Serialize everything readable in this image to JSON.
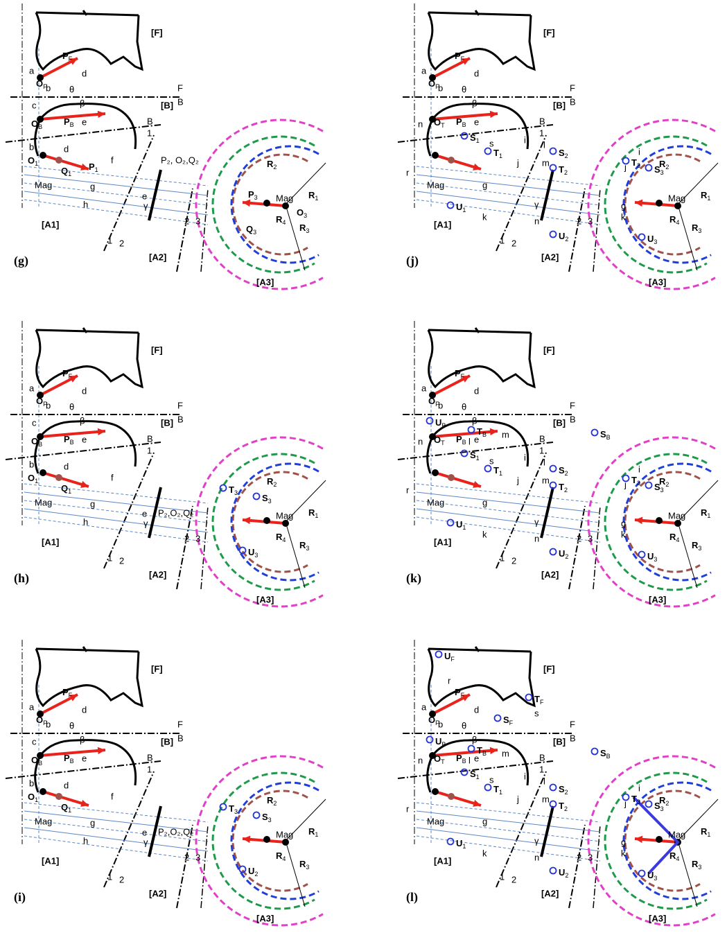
{
  "shared_labels": [
    "[F]",
    "a",
    {
      "text": "O",
      "sub": "F"
    },
    {
      "text": "P",
      "sub": "F"
    },
    "d",
    "b",
    "θ",
    "F",
    "B",
    "[B]",
    "β",
    {
      "text": "P",
      "sub": "B"
    },
    "e",
    "B",
    "1",
    "[A1]",
    "1",
    "2",
    "[A2]",
    "2",
    "3",
    "[A3]",
    {
      "text": "R",
      "sub": "1"
    },
    {
      "text": "R",
      "sub": "3"
    },
    "Mag",
    "Mag",
    {
      "text": "R",
      "sub": "2"
    }
  ],
  "panels": [
    {
      "labels": [
        "c",
        {
          "text": "O",
          "sub": "B"
        },
        "b",
        {
          "text": "O",
          "sub": "1"
        },
        {
          "text": "Q",
          "sub": "1"
        },
        {
          "text": "P",
          "sub": "1"
        },
        "d",
        "f",
        "P₂, O₂,Q₂",
        "g",
        "h",
        "e",
        "γ",
        {
          "text": "P",
          "sub": "3"
        },
        {
          "text": "O",
          "sub": "3"
        },
        {
          "text": "R",
          "sub": "4"
        },
        {
          "text": "Q",
          "sub": "3"
        },
        "(g)"
      ]
    },
    {
      "labels": [
        "n",
        {
          "text": "O",
          "sub": "T"
        },
        {
          "text": "S",
          "sub": "1"
        },
        "i",
        "s",
        {
          "text": "T",
          "sub": "1"
        },
        "j",
        "l",
        {
          "text": "S",
          "sub": "2"
        },
        "m",
        {
          "text": "T",
          "sub": "2"
        },
        "r",
        "g",
        {
          "text": "U",
          "sub": "1"
        },
        "k",
        "n",
        {
          "text": "U",
          "sub": "2"
        },
        "γ",
        "i",
        "j",
        {
          "text": "T",
          "sub": "3"
        },
        {
          "text": "S",
          "sub": "3"
        },
        "g",
        "k",
        {
          "text": "R",
          "sub": "4"
        },
        {
          "text": "U",
          "sub": "3"
        },
        "(j)"
      ]
    },
    {
      "labels": [
        "c",
        {
          "text": "O",
          "sub": "B"
        },
        "b",
        {
          "text": "O",
          "sub": "1"
        },
        {
          "text": "Q",
          "sub": "1"
        },
        "d",
        "f",
        "g",
        "h",
        "e",
        "γ",
        "P₂,O₂,Q₂",
        {
          "text": "T",
          "sub": "3"
        },
        {
          "text": "S",
          "sub": "3"
        },
        {
          "text": "R",
          "sub": "4"
        },
        {
          "text": "U",
          "sub": "3"
        },
        "(h)"
      ]
    },
    {
      "labels": [
        "n",
        {
          "text": "O",
          "sub": "T"
        },
        {
          "text": "S",
          "sub": "1"
        },
        "i",
        "s",
        {
          "text": "T",
          "sub": "1"
        },
        "j",
        "l",
        {
          "text": "S",
          "sub": "2"
        },
        "m",
        {
          "text": "T",
          "sub": "2"
        },
        "r",
        "g",
        {
          "text": "U",
          "sub": "1"
        },
        "k",
        "n",
        {
          "text": "U",
          "sub": "2"
        },
        "γ",
        "i",
        "j",
        {
          "text": "T",
          "sub": "3"
        },
        {
          "text": "S",
          "sub": "3"
        },
        "g",
        "k",
        {
          "text": "R",
          "sub": "4"
        },
        {
          "text": "U",
          "sub": "3"
        },
        "(k)",
        {
          "text": "U",
          "sub": "B"
        },
        {
          "text": "T",
          "sub": "B"
        },
        {
          "text": "S",
          "sub": "B"
        },
        "m",
        "l"
      ]
    },
    {
      "labels": [
        "c",
        {
          "text": "O",
          "sub": "B"
        },
        "b",
        {
          "text": "O",
          "sub": "1"
        },
        {
          "text": "Q",
          "sub": "1"
        },
        "d",
        "f",
        "g",
        "h",
        "e",
        "γ",
        "P₂,O₂,Q₂",
        {
          "text": "T",
          "sub": "3"
        },
        {
          "text": "S",
          "sub": "3"
        },
        {
          "text": "R",
          "sub": "4"
        },
        {
          "text": "U",
          "sub": "2"
        },
        "(i)"
      ]
    },
    {
      "labels": [
        "n",
        {
          "text": "O",
          "sub": "T"
        },
        {
          "text": "S",
          "sub": "1"
        },
        "i",
        "s",
        {
          "text": "T",
          "sub": "1"
        },
        "j",
        "l",
        {
          "text": "S",
          "sub": "2"
        },
        "m",
        {
          "text": "T",
          "sub": "2"
        },
        "r",
        "g",
        {
          "text": "U",
          "sub": "1"
        },
        "k",
        "n",
        {
          "text": "U",
          "sub": "2"
        },
        "γ",
        "i",
        "j",
        {
          "text": "T",
          "sub": "3"
        },
        {
          "text": "S",
          "sub": "3"
        },
        "g",
        "k",
        {
          "text": "R",
          "sub": "4"
        },
        {
          "text": "U",
          "sub": "3"
        },
        "(l)",
        {
          "text": "U",
          "sub": "B"
        },
        {
          "text": "T",
          "sub": "B"
        },
        {
          "text": "S",
          "sub": "B"
        },
        "m",
        "l",
        {
          "text": "U",
          "sub": "F"
        },
        "r",
        {
          "text": "T",
          "sub": "F"
        },
        "s",
        {
          "text": "S",
          "sub": "F"
        }
      ]
    }
  ]
}
